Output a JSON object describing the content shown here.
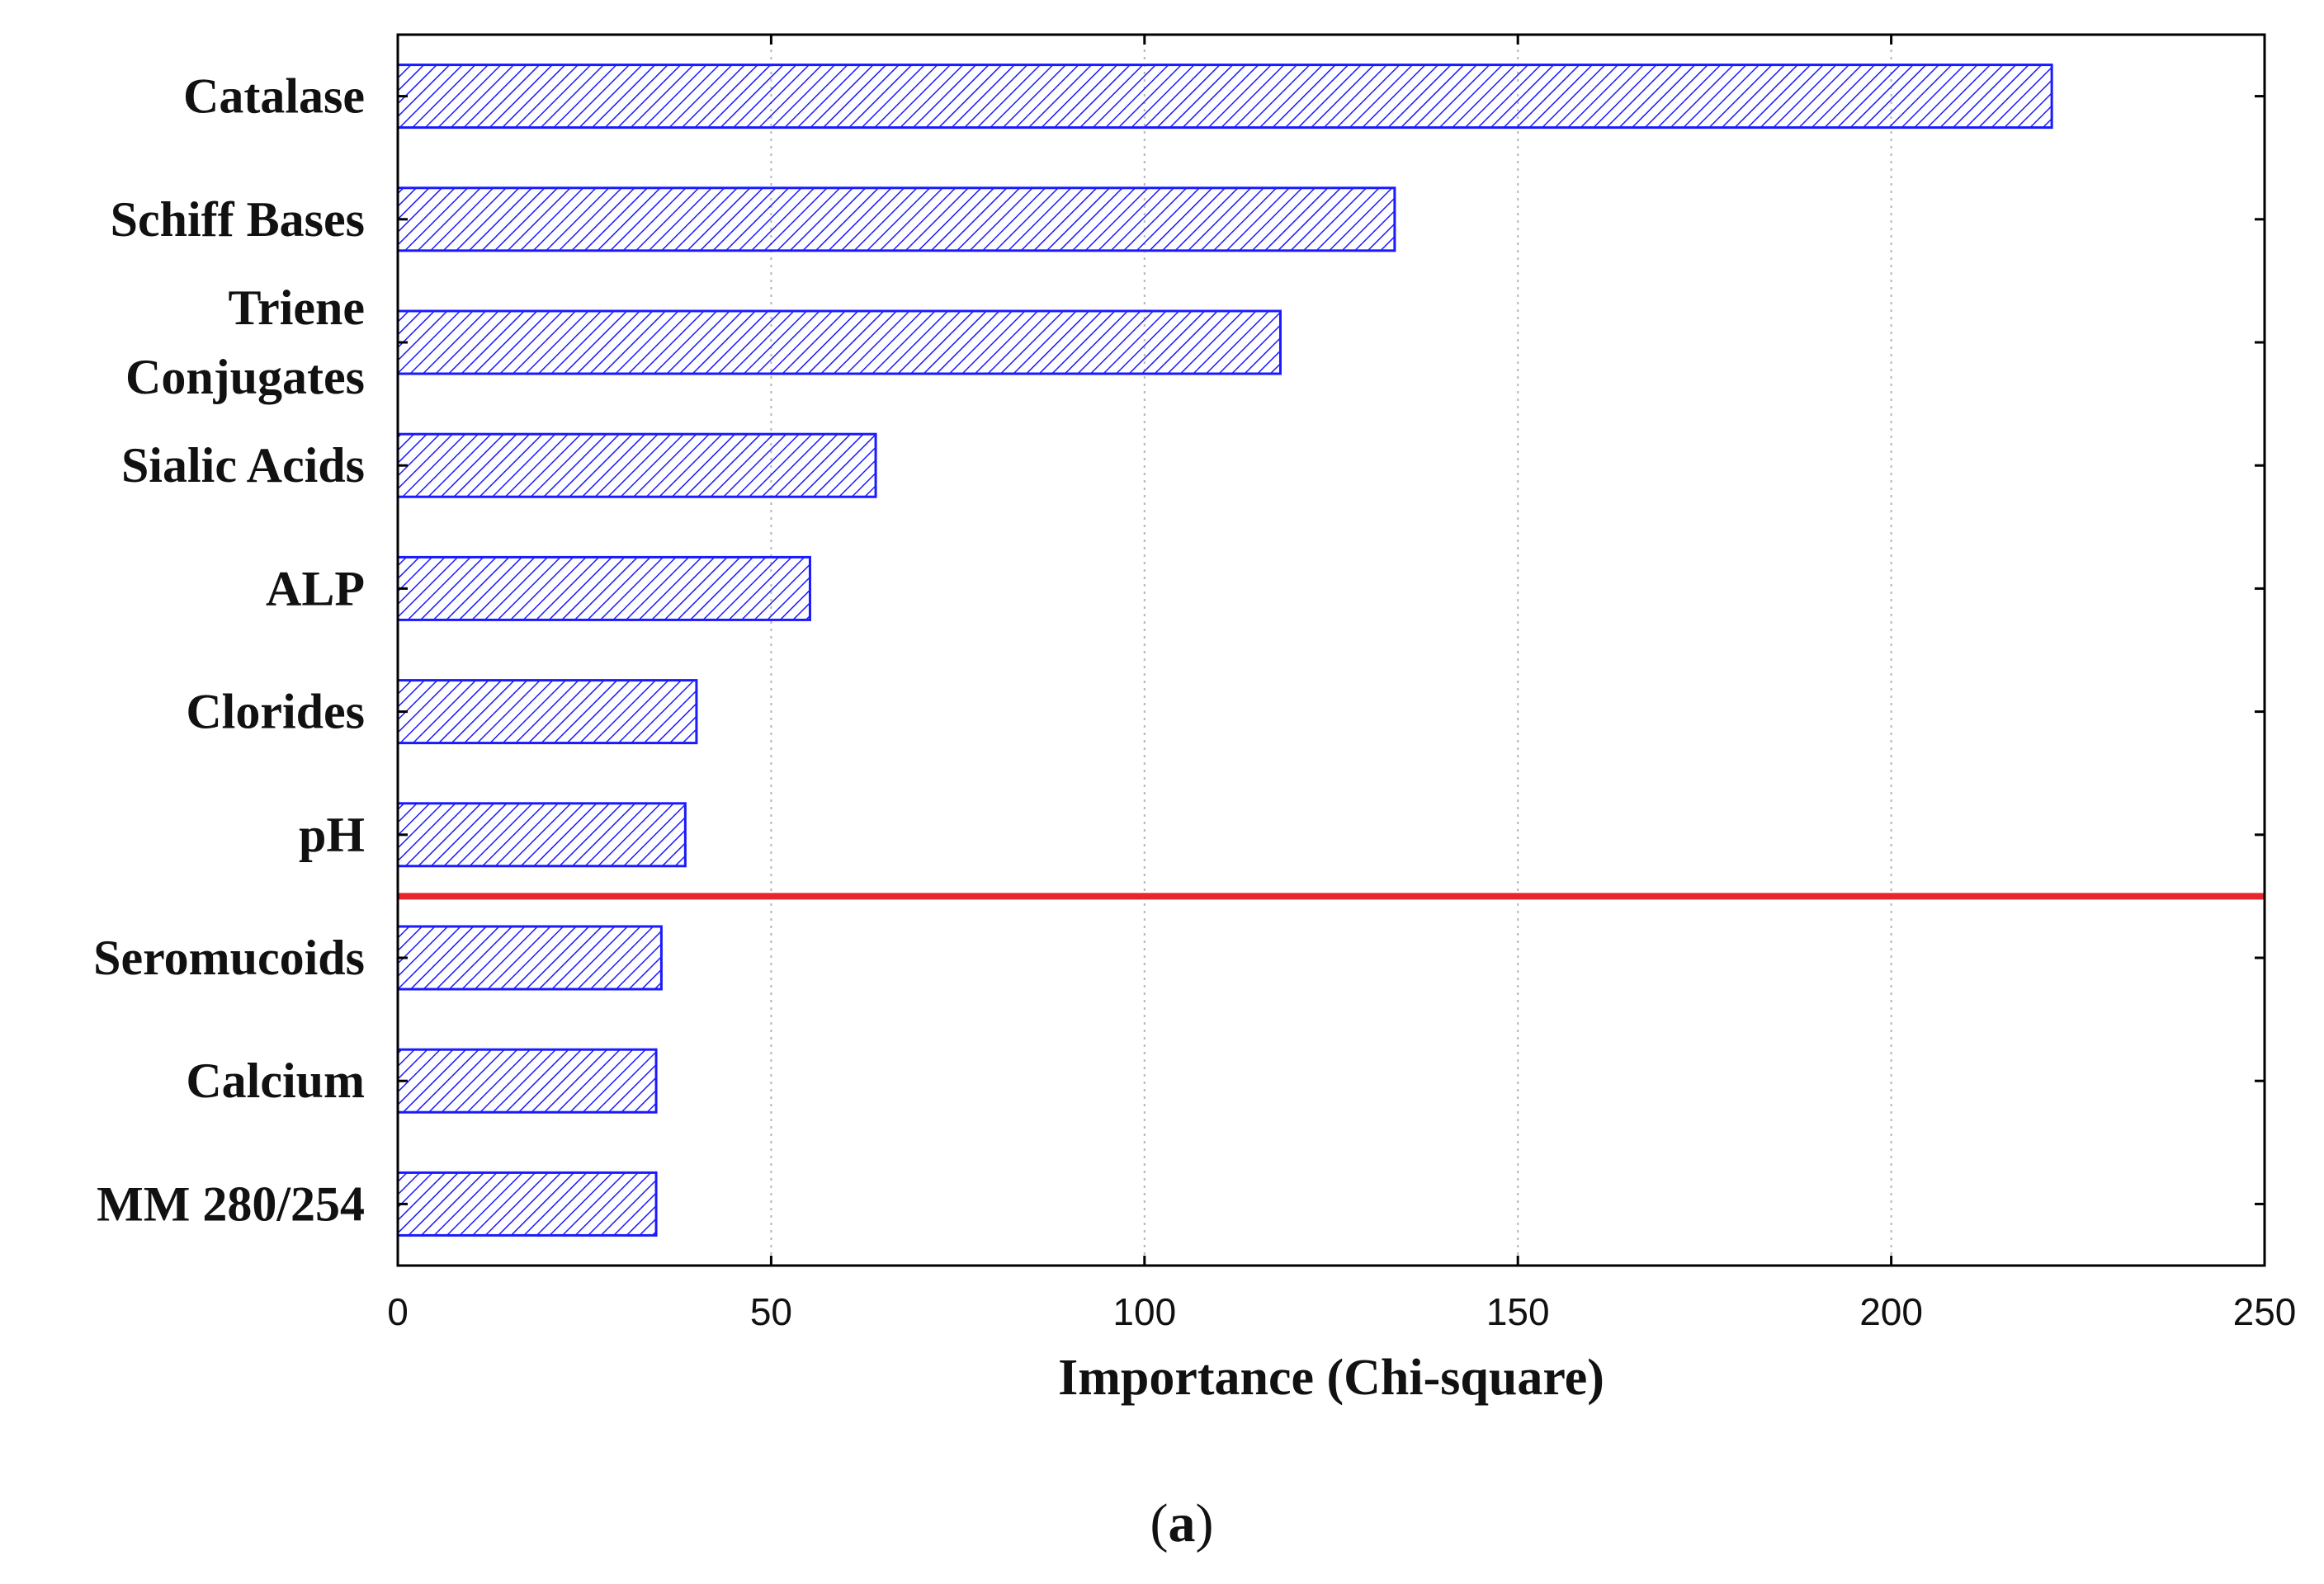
{
  "chart_data": {
    "type": "bar",
    "orientation": "horizontal",
    "categories": [
      "Catalase",
      "Schiff Bases",
      "Triene Conjugates",
      "Sialic Acids",
      "ALP",
      "Clorides",
      "pH",
      "Seromucoids",
      "Calcium",
      "MM 280/254"
    ],
    "category_label_lines": [
      [
        "Catalase"
      ],
      [
        "Schiff Bases"
      ],
      [
        "Triene",
        "Conjugates"
      ],
      [
        "Sialic Acids"
      ],
      [
        "ALP"
      ],
      [
        "Clorides"
      ],
      [
        "pH"
      ],
      [
        "Seromucoids"
      ],
      [
        "Calcium"
      ],
      [
        "MM 280/254"
      ]
    ],
    "values": [
      221.5,
      133.5,
      118.2,
      64.0,
      55.2,
      40.0,
      38.5,
      35.3,
      34.6,
      34.6
    ],
    "xlabel": "Importance (Chi-square)",
    "ylabel": "",
    "xlim": [
      0,
      250
    ],
    "xticks": [
      0,
      50,
      100,
      150,
      200,
      250
    ],
    "grid": "vertical dotted",
    "threshold_after_category": "pH",
    "colors": {
      "bar_stroke": "#1a1aff",
      "hatch": "#1a1aff",
      "threshold_line": "#e8242c",
      "grid": "#b5b5b5",
      "axis": "#000000"
    },
    "bar_pattern": "diagonal-hatch"
  },
  "panel_label": {
    "open": "(",
    "letter": "a",
    "close": ")"
  }
}
